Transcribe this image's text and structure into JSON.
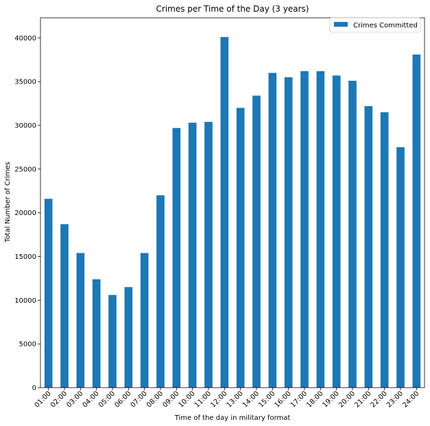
{
  "chart_data": {
    "type": "bar",
    "title": "Crimes per Time of the Day (3 years)",
    "xlabel": "Time of the day in military format",
    "ylabel": "Total Number of Crimes",
    "categories": [
      "01:00",
      "02:00",
      "03:00",
      "04:00",
      "05:00",
      "06:00",
      "07:00",
      "08:00",
      "09:00",
      "10:00",
      "11:00",
      "12:00",
      "13:00",
      "14:00",
      "15:00",
      "16:00",
      "17:00",
      "18:00",
      "19:00",
      "20:00",
      "21:00",
      "22:00",
      "23:00",
      "24:00"
    ],
    "series": [
      {
        "name": "Crimes Committed",
        "color": "#1f77b4",
        "values": [
          21600,
          18700,
          15400,
          12400,
          10600,
          11500,
          15400,
          22000,
          29700,
          30300,
          30400,
          40100,
          32000,
          33400,
          36000,
          35500,
          36200,
          36200,
          35700,
          35100,
          32200,
          31500,
          27500,
          38100
        ]
      }
    ],
    "ylim": [
      0,
      42300
    ],
    "yticks": [
      0,
      5000,
      10000,
      15000,
      20000,
      25000,
      30000,
      35000,
      40000
    ],
    "legend_position": "top-right",
    "grid": false
  }
}
